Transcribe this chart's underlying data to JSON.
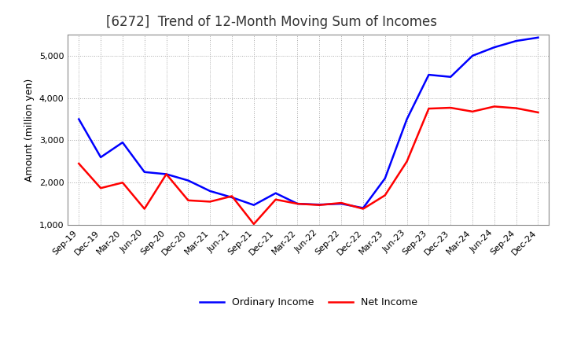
{
  "title": "[6272]  Trend of 12-Month Moving Sum of Incomes",
  "ylabel": "Amount (million yen)",
  "x_labels": [
    "Sep-19",
    "Dec-19",
    "Mar-20",
    "Jun-20",
    "Sep-20",
    "Dec-20",
    "Mar-21",
    "Jun-21",
    "Sep-21",
    "Dec-21",
    "Mar-22",
    "Jun-22",
    "Sep-22",
    "Dec-22",
    "Mar-23",
    "Jun-23",
    "Sep-23",
    "Dec-23",
    "Mar-24",
    "Jun-24",
    "Sep-24",
    "Dec-24"
  ],
  "ordinary_income": [
    3500,
    2600,
    2950,
    2250,
    2200,
    2050,
    1800,
    1650,
    1470,
    1750,
    1500,
    1480,
    1500,
    1400,
    2100,
    3500,
    4550,
    4500,
    5000,
    5200,
    5350,
    5430
  ],
  "net_income": [
    2450,
    1870,
    2000,
    1380,
    2200,
    1580,
    1550,
    1680,
    1020,
    1600,
    1500,
    1470,
    1520,
    1380,
    1700,
    2500,
    3750,
    3770,
    3680,
    3800,
    3760,
    3660
  ],
  "ordinary_color": "#0000ff",
  "net_color": "#ff0000",
  "ylim": [
    1000,
    5500
  ],
  "yticks": [
    1000,
    2000,
    3000,
    4000,
    5000
  ],
  "background_color": "#ffffff",
  "grid_color": "#aaaaaa",
  "title_fontsize": 12,
  "title_color": "#333333",
  "axis_label_fontsize": 9,
  "tick_fontsize": 8,
  "legend_fontsize": 9,
  "line_width": 1.8
}
